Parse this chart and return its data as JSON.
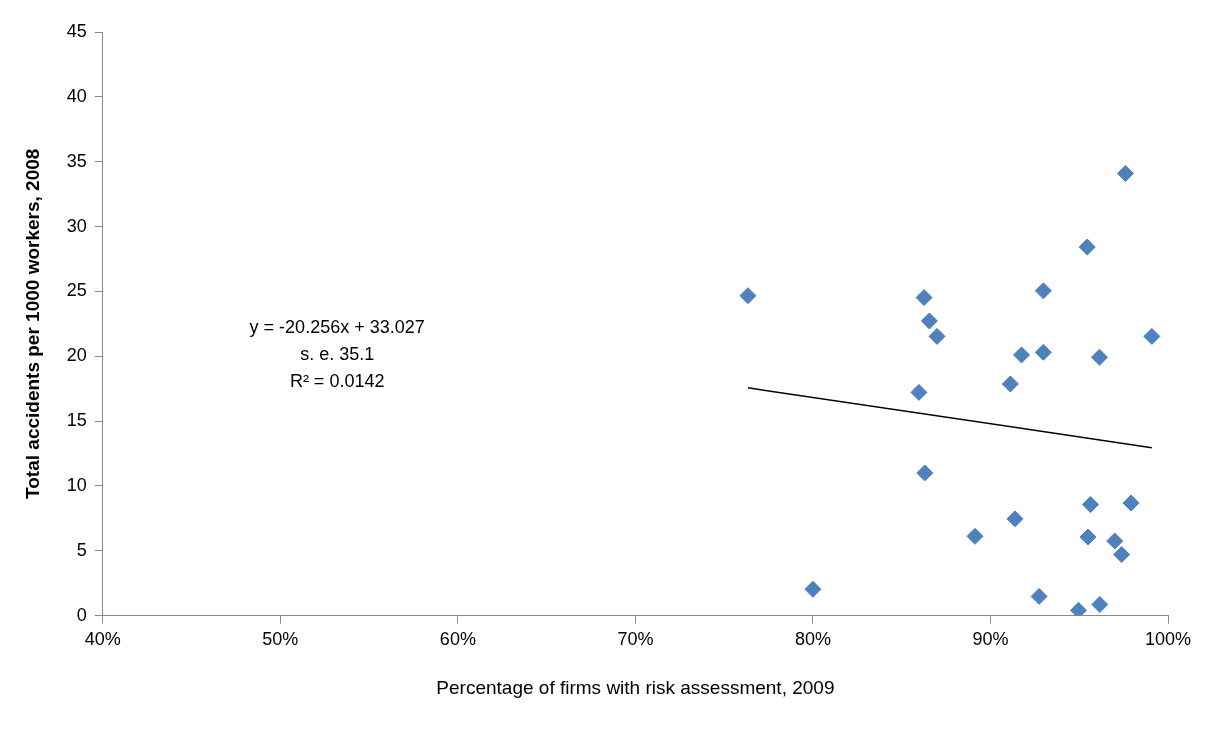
{
  "chart_data": {
    "type": "scatter",
    "xlabel": "Percentage of firms with risk assessment, 2009",
    "ylabel": "Total accidents per 1000 workers, 2008",
    "xlim": [
      40,
      100
    ],
    "xticks": [
      {
        "value": 40,
        "label": "40%"
      },
      {
        "value": 50,
        "label": "50%"
      },
      {
        "value": 60,
        "label": "60%"
      },
      {
        "value": 70,
        "label": "70%"
      },
      {
        "value": 80,
        "label": "80%"
      },
      {
        "value": 90,
        "label": "90%"
      },
      {
        "value": 100,
        "label": "100%"
      }
    ],
    "ylim": [
      0,
      45
    ],
    "yticks": [
      0,
      5,
      10,
      15,
      20,
      25,
      30,
      35,
      40,
      45
    ],
    "grid": false,
    "marker": "diamond",
    "series": [
      {
        "type": "scatter",
        "color": "#4f81bd",
        "x": [
          76.34,
          86.26,
          86.56,
          86.99,
          85.97,
          86.3,
          80.0,
          89.13,
          91.38,
          91.12,
          91.75,
          92.98,
          92.98,
          92.74,
          94.96,
          96.16,
          95.45,
          97.6,
          96.14,
          99.09,
          95.63,
          97.92,
          95.49,
          97.0,
          97.39
        ],
        "values": [
          24.67,
          24.52,
          22.72,
          21.53,
          17.21,
          11.0,
          2.03,
          6.11,
          7.46,
          17.86,
          20.1,
          20.3,
          25.04,
          1.48,
          0.41,
          0.86,
          28.42,
          34.09,
          19.92,
          21.53,
          8.56,
          8.68,
          6.06,
          5.75,
          4.71
        ]
      },
      {
        "type": "line",
        "color": "#000000",
        "marker": "none",
        "x": [
          76.34,
          99.09
        ],
        "values": [
          17.56,
          12.95
        ]
      }
    ],
    "annotations": [
      "y = -20.256x + 33.027",
      "s. e. 35.1",
      "R² = 0.0142"
    ]
  }
}
